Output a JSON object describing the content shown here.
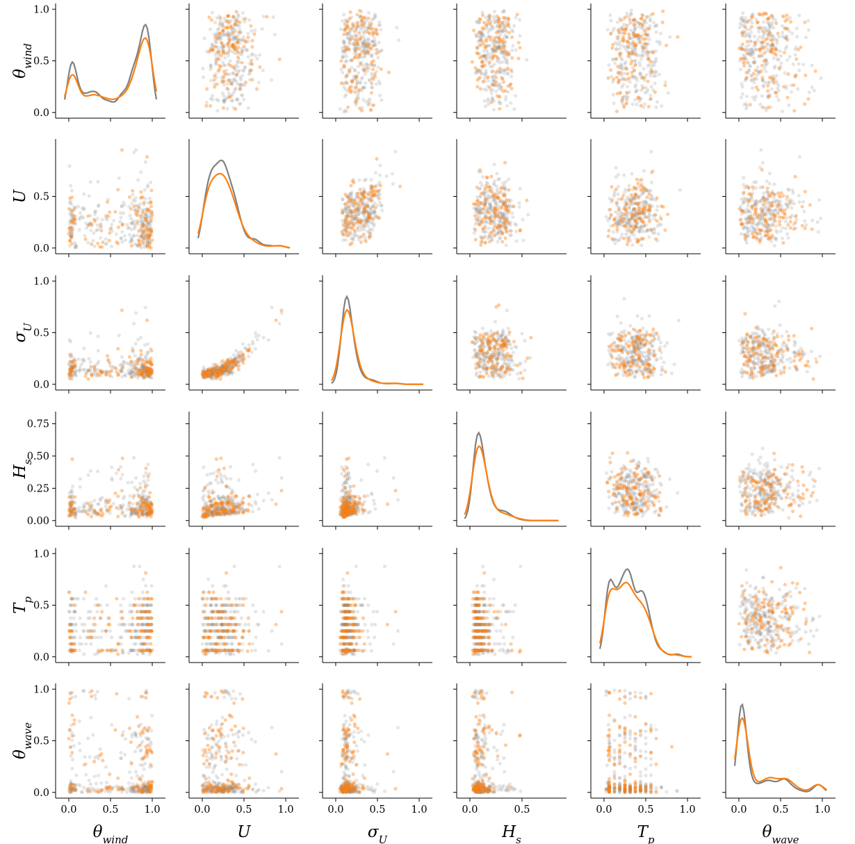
{
  "chart_data": {
    "type": "scatter",
    "subtype": "pairplot",
    "variables": [
      {
        "key": "theta_wind",
        "label": "θ",
        "sub": "wind",
        "range": [
          0,
          1
        ]
      },
      {
        "key": "U",
        "label": "U",
        "sub": "",
        "range": [
          0,
          1
        ]
      },
      {
        "key": "sigma_U",
        "label": "σ",
        "sub": "U",
        "range": [
          0,
          1
        ]
      },
      {
        "key": "H_s",
        "label": "H",
        "sub": "s",
        "range": [
          0,
          0.8
        ]
      },
      {
        "key": "T_p",
        "label": "T",
        "sub": "p",
        "range": [
          0,
          1
        ]
      },
      {
        "key": "theta_wave",
        "label": "θ",
        "sub": "wave",
        "range": [
          0,
          1
        ]
      }
    ],
    "x_ticks": [
      [
        "0.0",
        "0.5",
        "1.0"
      ],
      [
        "0.0",
        "0.5",
        "1.0"
      ],
      [
        "0.0",
        "0.5",
        "1.0"
      ],
      [
        "0.0",
        "0.5"
      ],
      [
        "0.0",
        "0.5",
        "1.0"
      ],
      [
        "0.0",
        "0.5",
        "1.0"
      ]
    ],
    "y_ticks": [
      [
        "0.0",
        "0.5",
        "1.0"
      ],
      [
        "0.0",
        "0.5"
      ],
      [
        "0.0",
        "0.5",
        "1.0"
      ],
      [
        "0.00",
        "0.25",
        "0.50",
        "0.75"
      ],
      [
        "0.0",
        "0.5",
        "1.0"
      ],
      [
        "0.0",
        "0.5",
        "1.0"
      ]
    ],
    "series": [
      {
        "color": "#808080",
        "marker_opacity": 0.2
      },
      {
        "color": "#ff7f0e",
        "marker_opacity": 0.4
      }
    ],
    "diagonal": "kde",
    "grid": false,
    "legend": "none"
  }
}
